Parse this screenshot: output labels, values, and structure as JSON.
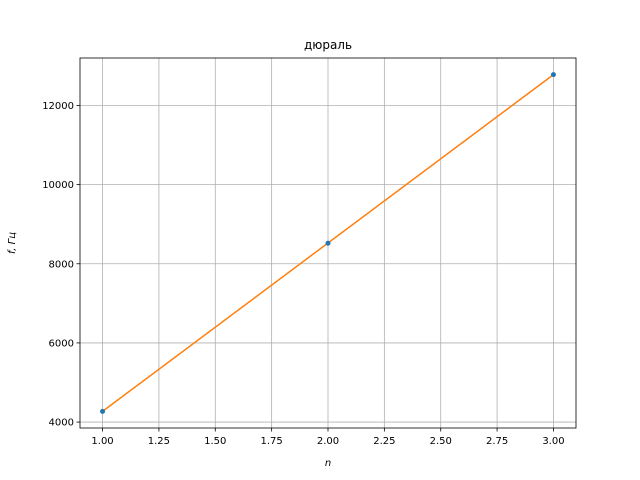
{
  "chart_data": {
    "type": "line",
    "title": "дюраль",
    "xlabel": "n",
    "ylabel": "f, Гц",
    "xlim": [
      0.9,
      3.1
    ],
    "ylim": [
      3850,
      13200
    ],
    "xticks": [
      1.0,
      1.25,
      1.5,
      1.75,
      2.0,
      2.25,
      2.5,
      2.75,
      3.0
    ],
    "xtick_labels": [
      "1.00",
      "1.25",
      "1.50",
      "1.75",
      "2.00",
      "2.25",
      "2.50",
      "2.75",
      "3.00"
    ],
    "yticks": [
      4000,
      6000,
      8000,
      10000,
      12000
    ],
    "ytick_labels": [
      "4000",
      "6000",
      "8000",
      "10000",
      "12000"
    ],
    "grid": true,
    "series": [
      {
        "kind": "scatter",
        "color": "#1f77b4",
        "x": [
          1,
          2,
          3
        ],
        "y": [
          4270,
          8520,
          12780
        ]
      },
      {
        "kind": "line",
        "color": "#ff7f0e",
        "x": [
          1,
          3
        ],
        "y": [
          4270,
          12780
        ]
      }
    ]
  }
}
